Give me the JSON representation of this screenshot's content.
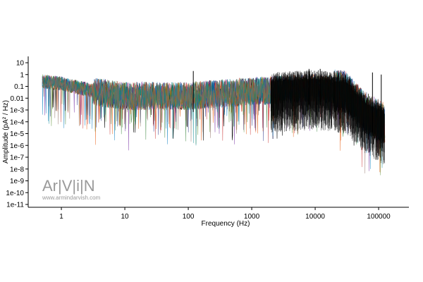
{
  "chart_data": {
    "type": "line",
    "title": "",
    "xlabel": "Frequency (Hz)",
    "ylabel": "Amplitude (pA² / Hz)",
    "x_scale": "log",
    "y_scale": "log",
    "xlim": [
      0.3,
      300000
    ],
    "ylim": [
      1e-11,
      10
    ],
    "x_ticks": [
      {
        "value": 1,
        "label": "1"
      },
      {
        "value": 10,
        "label": "10"
      },
      {
        "value": 100,
        "label": "100"
      },
      {
        "value": 1000,
        "label": "1000"
      },
      {
        "value": 10000,
        "label": "10000"
      },
      {
        "value": 100000,
        "label": "100000"
      }
    ],
    "y_ticks": [
      {
        "value": 10,
        "label": "10"
      },
      {
        "value": 1,
        "label": "1"
      },
      {
        "value": 0.1,
        "label": "0.1"
      },
      {
        "value": 0.01,
        "label": "0.01"
      },
      {
        "value": 0.001,
        "label": "1e-3"
      },
      {
        "value": 0.0001,
        "label": "1e-4"
      },
      {
        "value": 1e-05,
        "label": "1e-5"
      },
      {
        "value": 1e-06,
        "label": "1e-6"
      },
      {
        "value": 1e-07,
        "label": "1e-7"
      },
      {
        "value": 1e-08,
        "label": "1e-8"
      },
      {
        "value": 1e-09,
        "label": "1e-9"
      },
      {
        "value": 1e-10,
        "label": "1e-10"
      },
      {
        "value": 1e-11,
        "label": "1e-11"
      }
    ],
    "grid": false,
    "legend": "none",
    "series_count": 10,
    "series_colors": [
      "#000000",
      "#1a237e",
      "#c62828",
      "#2e7d32",
      "#6a1b9a",
      "#0277bd",
      "#e65100",
      "#558b2f",
      "#00838f",
      "#8d6e63"
    ],
    "x_range": [
      0.5,
      125000
    ],
    "envelope": [
      {
        "x": 0.5,
        "y_median": 0.3
      },
      {
        "x": 1,
        "y_median": 0.2
      },
      {
        "x": 3,
        "y_median": 0.05
      },
      {
        "x": 10,
        "y_median": 0.02
      },
      {
        "x": 100,
        "y_median": 0.02
      },
      {
        "x": 1000,
        "y_median": 0.05
      },
      {
        "x": 10000,
        "y_median": 0.1
      },
      {
        "x": 30000,
        "y_median": 0.05
      },
      {
        "x": 60000,
        "y_median": 0.001
      },
      {
        "x": 125000,
        "y_median": 0.0001
      }
    ],
    "peaks": [
      {
        "x": 120,
        "y": 2
      },
      {
        "x": 8000,
        "y": 3
      },
      {
        "x": 12000,
        "y": 3
      },
      {
        "x": 20000,
        "y": 2
      },
      {
        "x": 80000,
        "y": 1.5
      },
      {
        "x": 110000,
        "y": 1
      }
    ]
  },
  "watermark": {
    "logo": "Ar|V|i|N",
    "url": "www.armindarvish.com"
  }
}
